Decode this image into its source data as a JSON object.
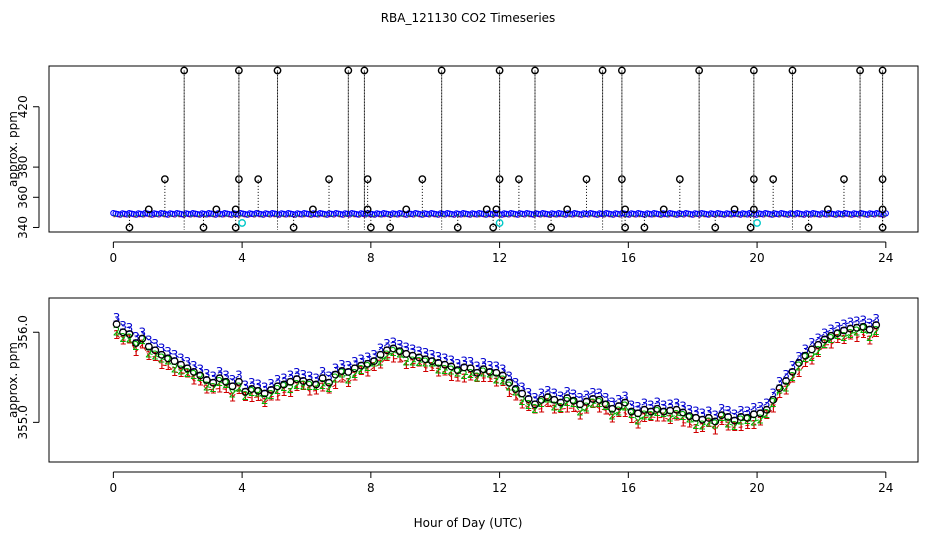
{
  "title": "RBA_121130  CO2 Timeseries",
  "xlabel": "Hour of Day (UTC)",
  "colors": {
    "frame": "#000000",
    "series1": "#d00000",
    "series2": "#00b000",
    "series3": "#0000d0",
    "points": "#000000",
    "cyan": "#00c8c8",
    "blueDots": "#0000ff"
  },
  "chart_data": [
    {
      "type": "scatter",
      "name": "top",
      "ylabel": "approx. ppm",
      "xlim": [
        -2,
        25
      ],
      "ylim": [
        337,
        447
      ],
      "xticks": [
        0,
        4,
        8,
        12,
        16,
        20,
        24
      ],
      "xtick_labels": [
        "0",
        "4",
        "8",
        "12",
        "16",
        "20",
        "24"
      ],
      "yticks": [
        340,
        360,
        380,
        420
      ],
      "ytick_labels": [
        "340",
        "360",
        "380",
        "420"
      ],
      "baseline": 349,
      "x_range": [
        0,
        24
      ],
      "spikes_high": [
        2.2,
        3.9,
        5.1,
        7.3,
        7.8,
        10.2,
        12.0,
        13.1,
        15.2,
        15.8,
        18.2,
        19.9,
        21.1,
        23.2,
        23.9
      ],
      "spikes_high_value": 444,
      "spikes_mid": [
        1.6,
        3.9,
        4.5,
        6.7,
        7.9,
        9.6,
        12.0,
        12.6,
        14.7,
        15.8,
        17.6,
        19.9,
        20.5,
        22.7,
        23.9
      ],
      "spikes_mid_value": 372,
      "spikes_low": [
        0.5,
        2.8,
        3.8,
        5.6,
        8.0,
        8.6,
        10.7,
        11.8,
        13.6,
        15.9,
        16.5,
        18.7,
        19.8,
        21.6,
        23.9
      ],
      "spikes_low_value": 340,
      "near_points": [
        1.1,
        3.2,
        3.8,
        6.2,
        7.9,
        9.1,
        11.6,
        11.9,
        14.1,
        15.9,
        17.1,
        19.3,
        19.9,
        22.2,
        23.9
      ],
      "near_points_value": 352,
      "cyan_points": [
        4.0,
        12.0,
        20.0
      ],
      "cyan_value": 343
    },
    {
      "type": "line",
      "name": "bottom",
      "ylabel": "approx. ppm",
      "xlim": [
        -2,
        25
      ],
      "ylim": [
        354.56,
        356.38
      ],
      "xticks": [
        0,
        4,
        8,
        12,
        16,
        20,
        24
      ],
      "xtick_labels": [
        "0",
        "4",
        "8",
        "12",
        "16",
        "20",
        "24"
      ],
      "yticks": [
        355.0,
        356.0
      ],
      "ytick_labels": [
        "355.0",
        "356.0"
      ],
      "x": [
        0.1,
        0.3,
        0.5,
        0.7,
        0.9,
        1.1,
        1.3,
        1.5,
        1.7,
        1.9,
        2.1,
        2.3,
        2.5,
        2.7,
        2.9,
        3.1,
        3.3,
        3.5,
        3.7,
        3.9,
        4.1,
        4.3,
        4.5,
        4.7,
        4.9,
        5.1,
        5.3,
        5.5,
        5.7,
        5.9,
        6.1,
        6.3,
        6.5,
        6.7,
        6.9,
        7.1,
        7.3,
        7.5,
        7.7,
        7.9,
        8.1,
        8.3,
        8.5,
        8.7,
        8.9,
        9.1,
        9.3,
        9.5,
        9.7,
        9.9,
        10.1,
        10.3,
        10.5,
        10.7,
        10.9,
        11.1,
        11.3,
        11.5,
        11.7,
        11.9,
        12.1,
        12.3,
        12.5,
        12.7,
        12.9,
        13.1,
        13.3,
        13.5,
        13.7,
        13.9,
        14.1,
        14.3,
        14.5,
        14.7,
        14.9,
        15.1,
        15.3,
        15.5,
        15.7,
        15.9,
        16.1,
        16.3,
        16.5,
        16.7,
        16.9,
        17.1,
        17.3,
        17.5,
        17.7,
        17.9,
        18.1,
        18.3,
        18.5,
        18.7,
        18.9,
        19.1,
        19.3,
        19.5,
        19.7,
        19.9,
        20.1,
        20.3,
        20.5,
        20.7,
        20.9,
        21.1,
        21.3,
        21.5,
        21.7,
        21.9,
        22.1,
        22.3,
        22.5,
        22.7,
        22.9,
        23.1,
        23.3,
        23.5,
        23.7
      ],
      "circle_values": [
        356.09,
        356.0,
        355.98,
        355.88,
        355.93,
        355.84,
        355.8,
        355.75,
        355.71,
        355.68,
        355.64,
        355.6,
        355.56,
        355.52,
        355.47,
        355.44,
        355.49,
        355.45,
        355.4,
        355.45,
        355.34,
        355.37,
        355.35,
        355.32,
        355.36,
        355.4,
        355.42,
        355.45,
        355.48,
        355.46,
        355.44,
        355.42,
        355.49,
        355.44,
        355.53,
        355.57,
        355.56,
        355.6,
        355.63,
        355.65,
        355.68,
        355.75,
        355.8,
        355.82,
        355.79,
        355.76,
        355.74,
        355.72,
        355.7,
        355.68,
        355.66,
        355.64,
        355.62,
        355.58,
        355.61,
        355.6,
        355.55,
        355.59,
        355.56,
        355.55,
        355.52,
        355.44,
        355.37,
        355.32,
        355.26,
        355.2,
        355.25,
        355.28,
        355.25,
        355.22,
        355.27,
        355.24,
        355.2,
        355.23,
        355.26,
        355.25,
        355.2,
        355.15,
        355.18,
        355.22,
        355.12,
        355.1,
        355.14,
        355.12,
        355.15,
        355.12,
        355.13,
        355.14,
        355.11,
        355.07,
        355.05,
        355.03,
        355.05,
        355.01,
        355.08,
        355.06,
        355.02,
        355.06,
        355.05,
        355.09,
        355.1,
        355.14,
        355.25,
        355.38,
        355.46,
        355.56,
        355.66,
        355.74,
        355.81,
        355.86,
        355.92,
        355.96,
        355.99,
        356.02,
        356.04,
        356.05,
        356.06,
        356.03,
        356.08
      ],
      "series": [
        {
          "name": "1",
          "marker": "1",
          "offset": -0.09
        },
        {
          "name": "2",
          "marker": "2",
          "offset": -0.05
        },
        {
          "name": "3",
          "marker": "3",
          "offset": 0.1
        }
      ]
    }
  ]
}
